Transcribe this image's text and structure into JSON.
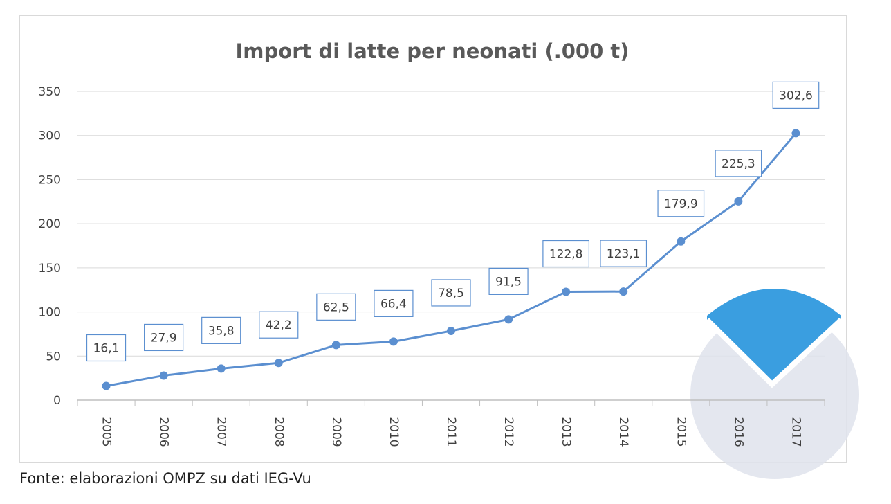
{
  "colors": {
    "line": "#5b8fd0",
    "marker": "#5b8fd0",
    "label_border": "#5b8fd0",
    "gridline": "#d9d9d9",
    "axis": "#bfbfbf",
    "watermark_blue": "#3a9ee0",
    "watermark_grey": "#dfe3ec"
  },
  "chart_data": {
    "type": "line",
    "title": "Import di latte per neonati (.000 t)",
    "xlabel": "",
    "ylabel": "",
    "categories": [
      "2005",
      "2006",
      "2007",
      "2008",
      "2009",
      "2010",
      "2011",
      "2012",
      "2013",
      "2014",
      "2015",
      "2016",
      "2017"
    ],
    "series": [
      {
        "values": [
          16.1,
          27.9,
          35.8,
          42.2,
          62.5,
          66.4,
          78.5,
          91.5,
          122.8,
          123.1,
          179.9,
          225.3,
          302.6
        ],
        "labels": [
          "16,1",
          "27,9",
          "35,8",
          "42,2",
          "62,5",
          "66,4",
          "78,5",
          "91,5",
          "122,8",
          "123,1",
          "179,9",
          "225,3",
          "302,6"
        ]
      }
    ],
    "ylim": [
      0,
      350
    ],
    "yticks": [
      0,
      50,
      100,
      150,
      200,
      250,
      300,
      350
    ],
    "ytick_labels": [
      "0",
      "50",
      "100",
      "150",
      "200",
      "250",
      "300",
      "350"
    ],
    "grid": true,
    "legend": "none",
    "data_labels": true
  },
  "watermark": {
    "icon": "shield-logo-icon"
  },
  "footer": {
    "source": "Fonte: elaborazioni OMPZ su dati IEG-Vu"
  }
}
